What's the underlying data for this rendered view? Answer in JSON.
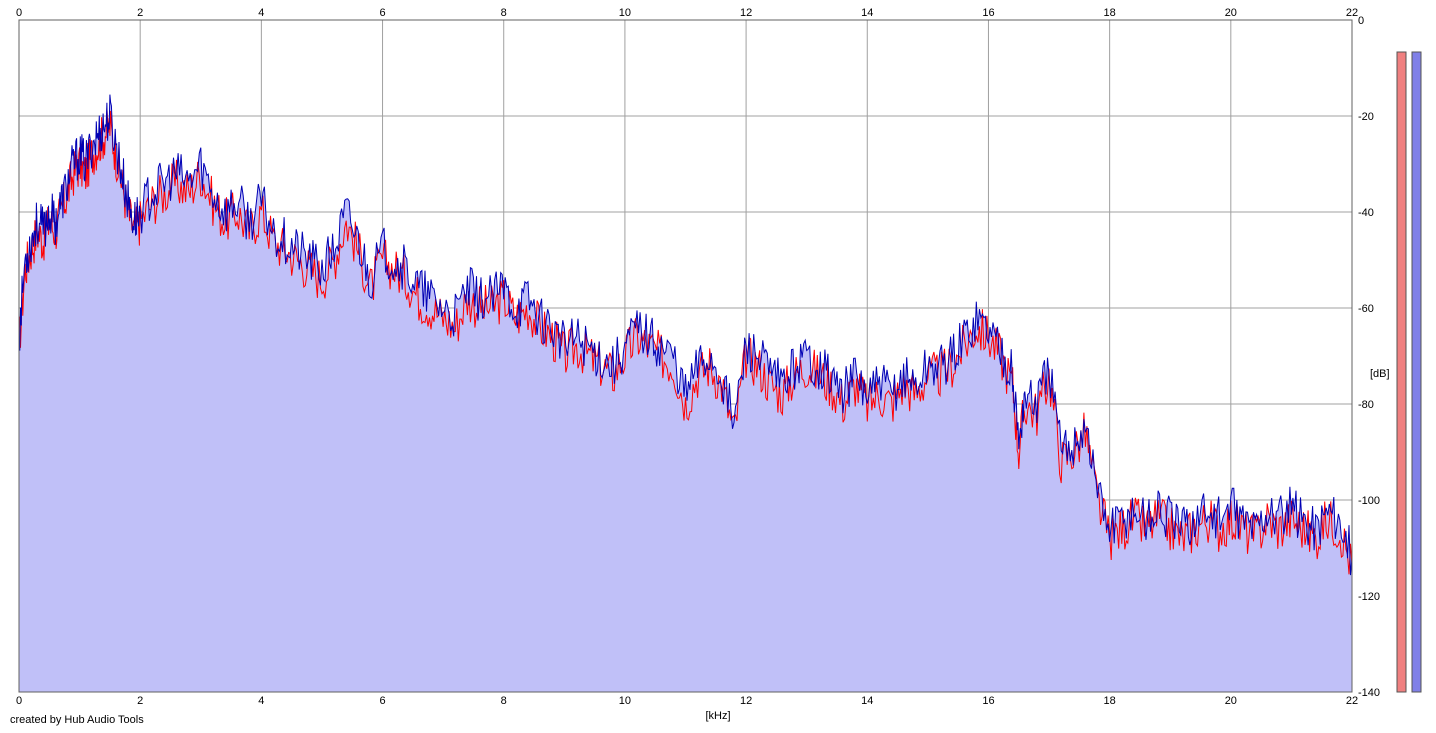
{
  "credit": "created by Hub Audio Tools",
  "colors": {
    "fill": "#c0c0f8",
    "left_channel": "#ff0000",
    "right_channel": "#0000b4",
    "left_meter": "#f08080",
    "right_meter": "#8080e8",
    "grid": "#a0a0a0"
  },
  "chart_data": {
    "type": "area",
    "title": "",
    "xlabel": "[kHz]",
    "ylabel": "[dB]",
    "xlim": [
      0,
      22
    ],
    "ylim": [
      -140,
      0
    ],
    "x_ticks": [
      "0",
      "2",
      "4",
      "6",
      "8",
      "10",
      "12",
      "14",
      "16",
      "18",
      "20",
      "22"
    ],
    "y_ticks": [
      "0",
      "-20",
      "-40",
      "-60",
      "-80",
      "-100",
      "-120",
      "-140"
    ],
    "grid": true,
    "x": [
      0,
      0.1,
      0.2,
      0.3,
      0.4,
      0.5,
      0.6,
      0.7,
      0.8,
      0.9,
      1.0,
      1.1,
      1.2,
      1.3,
      1.4,
      1.5,
      1.6,
      1.7,
      1.8,
      1.9,
      2.0,
      2.2,
      2.4,
      2.6,
      2.8,
      3.0,
      3.2,
      3.4,
      3.6,
      3.8,
      4.0,
      4.2,
      4.4,
      4.6,
      4.8,
      5.0,
      5.2,
      5.4,
      5.6,
      5.8,
      6.0,
      6.2,
      6.4,
      6.6,
      6.8,
      7.0,
      7.2,
      7.4,
      7.6,
      7.8,
      8.0,
      8.2,
      8.4,
      8.6,
      8.8,
      9.0,
      9.2,
      9.4,
      9.6,
      9.8,
      10.0,
      10.2,
      10.4,
      10.6,
      10.8,
      11.0,
      11.2,
      11.4,
      11.6,
      11.8,
      12.0,
      12.2,
      12.4,
      12.6,
      12.8,
      13.0,
      13.2,
      13.4,
      13.6,
      13.8,
      14.0,
      14.2,
      14.4,
      14.6,
      14.8,
      15.0,
      15.2,
      15.4,
      15.6,
      15.8,
      16.0,
      16.2,
      16.4,
      16.5,
      16.6,
      16.8,
      17.0,
      17.2,
      17.4,
      17.6,
      17.8,
      18.0,
      18.2,
      18.4,
      18.6,
      18.8,
      19.0,
      19.2,
      19.4,
      19.6,
      19.8,
      20.0,
      20.2,
      20.4,
      20.6,
      20.8,
      21.0,
      21.2,
      21.4,
      21.6,
      21.8,
      22.0
    ],
    "series": [
      {
        "values": [
          -68,
          -52,
          -48,
          -44,
          -46,
          -42,
          -44,
          -40,
          -36,
          -32,
          -30,
          -32,
          -28,
          -26,
          -24,
          -22,
          -28,
          -34,
          -40,
          -44,
          -42,
          -38,
          -36,
          -34,
          -36,
          -32,
          -38,
          -42,
          -40,
          -44,
          -40,
          -46,
          -48,
          -50,
          -52,
          -54,
          -50,
          -42,
          -48,
          -56,
          -50,
          -52,
          -54,
          -58,
          -60,
          -62,
          -64,
          -58,
          -60,
          -60,
          -58,
          -62,
          -60,
          -64,
          -66,
          -70,
          -68,
          -70,
          -72,
          -74,
          -70,
          -66,
          -68,
          -70,
          -72,
          -80,
          -74,
          -72,
          -76,
          -86,
          -70,
          -72,
          -76,
          -78,
          -74,
          -72,
          -74,
          -76,
          -80,
          -76,
          -80,
          -78,
          -80,
          -76,
          -78,
          -74,
          -74,
          -72,
          -68,
          -64,
          -66,
          -70,
          -76,
          -90,
          -80,
          -82,
          -74,
          -92,
          -90,
          -86,
          -100,
          -108,
          -106,
          -104,
          -106,
          -104,
          -106,
          -108,
          -106,
          -104,
          -106,
          -104,
          -106,
          -108,
          -104,
          -106,
          -104,
          -106,
          -108,
          -104,
          -106,
          -114
        ]
      },
      {
        "values": [
          -66,
          -50,
          -46,
          -42,
          -44,
          -40,
          -42,
          -38,
          -34,
          -30,
          -28,
          -30,
          -26,
          -24,
          -22,
          -20,
          -26,
          -32,
          -38,
          -42,
          -40,
          -36,
          -34,
          -32,
          -34,
          -30,
          -36,
          -40,
          -38,
          -42,
          -38,
          -44,
          -46,
          -48,
          -50,
          -52,
          -48,
          -40,
          -46,
          -54,
          -48,
          -50,
          -52,
          -56,
          -58,
          -60,
          -62,
          -56,
          -58,
          -58,
          -56,
          -60,
          -58,
          -62,
          -64,
          -68,
          -66,
          -68,
          -70,
          -72,
          -68,
          -64,
          -66,
          -68,
          -70,
          -78,
          -72,
          -70,
          -74,
          -84,
          -68,
          -70,
          -74,
          -76,
          -72,
          -70,
          -72,
          -74,
          -78,
          -74,
          -78,
          -76,
          -78,
          -74,
          -76,
          -72,
          -72,
          -70,
          -66,
          -62,
          -64,
          -68,
          -74,
          -88,
          -78,
          -80,
          -72,
          -90,
          -88,
          -84,
          -98,
          -106,
          -104,
          -102,
          -104,
          -102,
          -104,
          -106,
          -104,
          -102,
          -104,
          -102,
          -104,
          -106,
          -102,
          -104,
          -102,
          -104,
          -106,
          -102,
          -104,
          -112
        ]
      }
    ]
  }
}
